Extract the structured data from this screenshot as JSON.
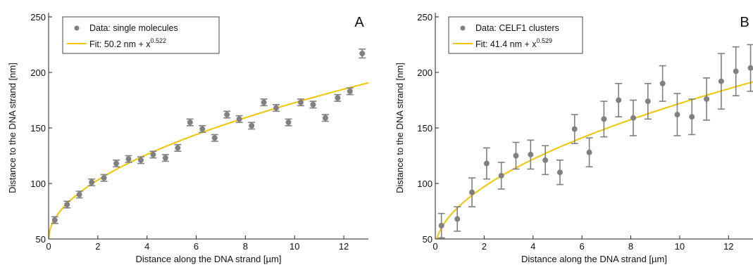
{
  "chart_data": [
    {
      "type": "scatter",
      "panel_letter": "A",
      "xlabel": "Distance along the DNA strand [µm]",
      "ylabel": "Distance to the DNA strand [nm]",
      "xlim": [
        0,
        13
      ],
      "ylim": [
        50,
        250
      ],
      "xticks": [
        0,
        2,
        4,
        6,
        8,
        10,
        12
      ],
      "yticks": [
        50,
        100,
        150,
        200,
        250
      ],
      "grid": false,
      "legend_position": "top-left",
      "legend": {
        "data_label": "Data: single molecules",
        "fit_label": "Fit: 50.2 nm + x",
        "fit_exponent": "0.522"
      },
      "colors": {
        "data": "#808080",
        "fit": "#f2c500"
      },
      "fit": {
        "offset": 50.2,
        "exponent": 0.522
      },
      "series": [
        {
          "name": "Data: single molecules",
          "x": [
            0.25,
            0.75,
            1.25,
            1.75,
            2.25,
            2.75,
            3.25,
            3.75,
            4.25,
            4.75,
            5.25,
            5.75,
            6.25,
            6.75,
            7.25,
            7.75,
            8.25,
            8.75,
            9.25,
            9.75,
            10.25,
            10.75,
            11.25,
            11.75,
            12.25,
            12.75
          ],
          "y": [
            67,
            81,
            90,
            101,
            105,
            118,
            122,
            121,
            126,
            123,
            132,
            155,
            149,
            141,
            162,
            158,
            152,
            173,
            168,
            155,
            173,
            171,
            159,
            177,
            183,
            217
          ],
          "err": [
            3,
            3,
            3,
            3,
            3,
            3,
            3,
            3,
            3,
            3,
            3,
            3,
            3,
            3,
            3,
            3,
            3,
            3,
            3,
            3,
            3,
            3,
            3,
            3,
            3,
            4
          ]
        }
      ]
    },
    {
      "type": "scatter",
      "panel_letter": "B",
      "xlabel": "Distance along the DNA strand [µm]",
      "ylabel": "Distance to the DNA strand [nm]",
      "xlim": [
        0,
        13
      ],
      "ylim": [
        50,
        250
      ],
      "xticks": [
        0,
        2,
        4,
        6,
        8,
        10,
        12
      ],
      "yticks": [
        50,
        100,
        150,
        200,
        250
      ],
      "grid": false,
      "legend_position": "top-left",
      "legend": {
        "data_label": "Data: CELF1 clusters",
        "fit_label": "Fit: 41.4 nm + x",
        "fit_exponent": "0.529"
      },
      "colors": {
        "data": "#808080",
        "fit": "#f2c500"
      },
      "fit": {
        "offset": 41.4,
        "exponent": 0.529
      },
      "series": [
        {
          "name": "Data: CELF1 clusters",
          "x": [
            0.25,
            0.9,
            1.5,
            2.1,
            2.7,
            3.3,
            3.9,
            4.5,
            5.1,
            5.7,
            6.3,
            6.9,
            7.5,
            8.1,
            8.7,
            9.3,
            9.9,
            10.5,
            11.1,
            11.7,
            12.3,
            12.9
          ],
          "y": [
            62,
            68,
            92,
            118,
            107,
            125,
            126,
            121,
            110,
            149,
            128,
            158,
            175,
            159,
            174,
            190,
            162,
            160,
            176,
            192,
            201,
            204
          ],
          "err": [
            11,
            11,
            13,
            14,
            12,
            12,
            13,
            13,
            11,
            13,
            13,
            16,
            15,
            16,
            16,
            16,
            19,
            16,
            19,
            25,
            22,
            21
          ]
        }
      ]
    }
  ]
}
